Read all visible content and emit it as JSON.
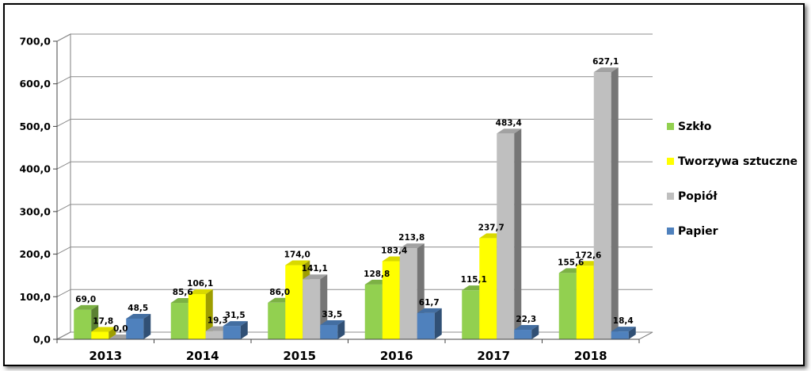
{
  "chart_data": {
    "type": "bar",
    "categories": [
      "2013",
      "2014",
      "2015",
      "2016",
      "2017",
      "2018"
    ],
    "series": [
      {
        "name": "Szkło",
        "color": "#92d050",
        "values": [
          69.0,
          85.6,
          86.0,
          128.8,
          115.1,
          155.6
        ],
        "labels": [
          "69,0",
          "85,6",
          "86,0",
          "128,8",
          "115,1",
          "155,6"
        ]
      },
      {
        "name": "Tworzywa sztuczne",
        "color": "#ffff00",
        "values": [
          17.8,
          106.1,
          174.0,
          183.4,
          237.7,
          172.6
        ],
        "labels": [
          "17,8",
          "106,1",
          "174,0",
          "183,4",
          "237,7",
          "172,6"
        ]
      },
      {
        "name": "Popiół",
        "color": "#bfbfbf",
        "values": [
          0.0,
          19.3,
          141.1,
          213.8,
          483.4,
          627.1
        ],
        "labels": [
          "0,0",
          "19,3",
          "141,1",
          "213,8",
          "483,4",
          "627,1"
        ]
      },
      {
        "name": "Papier",
        "color": "#4f81bd",
        "values": [
          48.5,
          31.5,
          33.5,
          61.7,
          22.3,
          18.4
        ],
        "labels": [
          "48,5",
          "31,5",
          "33,5",
          "61,7",
          "22,3",
          "18,4"
        ]
      }
    ],
    "yticks": [
      "0,0",
      "100,0",
      "200,0",
      "300,0",
      "400,0",
      "500,0",
      "600,0",
      "700,0"
    ],
    "ylim": [
      0,
      700
    ],
    "ystep": 100,
    "grid": true,
    "legend": "right"
  }
}
